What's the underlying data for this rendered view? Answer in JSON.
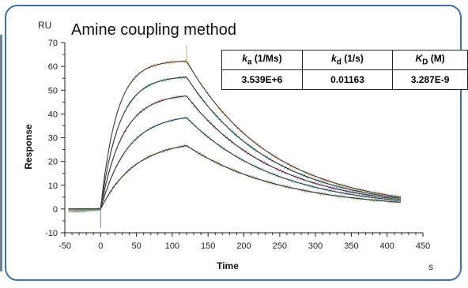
{
  "chart_data": {
    "type": "line",
    "title": "Amine coupling method",
    "y_unit": "RU",
    "x_unit": "s",
    "xlabel": "Time",
    "ylabel": "Response",
    "xlim": [
      -50,
      450
    ],
    "ylim": [
      -10,
      70
    ],
    "x_ticks": [
      -50,
      0,
      50,
      100,
      150,
      200,
      250,
      300,
      350,
      400,
      450
    ],
    "y_ticks": [
      -10,
      0,
      10,
      20,
      30,
      40,
      50,
      60,
      70
    ],
    "grid": false,
    "injection_start": 0,
    "injection_end": 120,
    "run_end": 420,
    "series": [
      {
        "plateau": 62.5,
        "end": 5.0,
        "fit_color": "#333333",
        "raw_color": "#e8a060"
      },
      {
        "plateau": 56.0,
        "end": 4.5,
        "fit_color": "#2b2b2b",
        "raw_color": "#5cb8a8"
      },
      {
        "plateau": 48.5,
        "end": 4.0,
        "fit_color": "#2b2b2b",
        "raw_color": "#c07ab8"
      },
      {
        "plateau": 40.0,
        "end": 3.5,
        "fit_color": "#2b2b2b",
        "raw_color": "#7ac0d0"
      },
      {
        "plateau": 29.0,
        "end": 2.8,
        "fit_color": "#2b2b2b",
        "raw_color": "#8aa070"
      }
    ]
  },
  "kinetics_table": {
    "headers": [
      {
        "sym": "k",
        "sub": "a",
        "unit": " (1/Ms)"
      },
      {
        "sym": "k",
        "sub": "d",
        "unit": " (1/s)"
      },
      {
        "sym": "K",
        "sub": "D",
        "unit": " (M)"
      }
    ],
    "values": [
      "3.539E+6",
      "0.01163",
      "3.287E-9"
    ]
  },
  "colors": {
    "frame": "#3f6fa5",
    "axis": "#222222"
  }
}
